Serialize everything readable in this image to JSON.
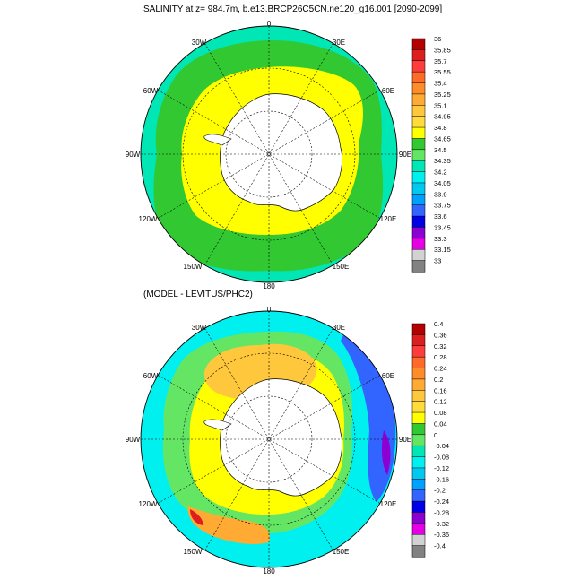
{
  "panels": [
    {
      "id": "top",
      "title": "SALINITY at z= 984.7m, b.e13.BRCP26C5CN.ne120_g16.001 [2090-2099]",
      "colorbar": {
        "labels": [
          "36",
          "35.85",
          "35.7",
          "35.55",
          "35.4",
          "35.25",
          "35.1",
          "34.95",
          "34.8",
          "34.65",
          "34.5",
          "34.35",
          "34.2",
          "34.05",
          "33.9",
          "33.75",
          "33.6",
          "33.45",
          "33.3",
          "33.15",
          "33"
        ],
        "colors": [
          "#b40000",
          "#dc1e1e",
          "#ff3c3c",
          "#ff6a28",
          "#ff8c28",
          "#ffaa32",
          "#ffc83c",
          "#ffdc3c",
          "#ffff00",
          "#32c832",
          "#64e664",
          "#00e6b4",
          "#00f0f0",
          "#00c8f0",
          "#00a0ff",
          "#3264ff",
          "#0000e6",
          "#8c00d2",
          "#e600e6",
          "#d2d2d2",
          "#828282"
        ]
      },
      "map": {
        "pole_land_color": "#ffffff",
        "zones": [
          {
            "field": "outer ring",
            "color": "#00e6b4"
          },
          {
            "field": "middle ring",
            "color": "#32c832"
          },
          {
            "field": "inner ring",
            "color": "#ffff00"
          }
        ]
      }
    },
    {
      "id": "bottom",
      "title": "(MODEL - LEVITUS/PHC2)",
      "colorbar": {
        "labels": [
          "0.4",
          "0.36",
          "0.32",
          "0.28",
          "0.24",
          "0.2",
          "0.16",
          "0.12",
          "0.08",
          "0.04",
          "0",
          "-0.04",
          "-0.08",
          "-0.12",
          "-0.16",
          "-0.2",
          "-0.24",
          "-0.28",
          "-0.32",
          "-0.36",
          "-0.4"
        ],
        "colors": [
          "#b40000",
          "#dc1e1e",
          "#ff3c3c",
          "#ff6a28",
          "#ff8c28",
          "#ffaa32",
          "#ffc83c",
          "#ffdc3c",
          "#ffff00",
          "#32c832",
          "#64e664",
          "#00e6b4",
          "#00f0f0",
          "#00c8f0",
          "#00a0ff",
          "#3264ff",
          "#0000e6",
          "#8c00d2",
          "#e600e6",
          "#d2d2d2",
          "#828282"
        ]
      },
      "map": {
        "pole_land_color": "#ffffff",
        "zones": [
          {
            "field": "outer ring",
            "color": "#00f0f0"
          },
          {
            "field": "middle ring",
            "color": "#64e664"
          },
          {
            "field": "inner ring",
            "color": "#ffc83c"
          }
        ]
      }
    }
  ],
  "longitude_labels": {
    "n0": "0",
    "e30": "30E",
    "e60": "60E",
    "e90": "90E",
    "e120": "120E",
    "e150": "150E",
    "s180": "180",
    "w150": "150W",
    "w120": "120W",
    "w90": "90W",
    "w60": "60W",
    "w30": "30W"
  }
}
